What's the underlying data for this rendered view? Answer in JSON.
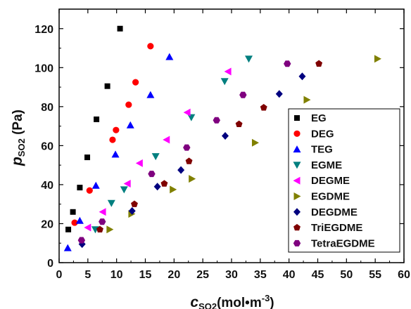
{
  "chart_data": {
    "type": "scatter",
    "x_axis": {
      "min": 0,
      "max": 60,
      "ticks": [
        0,
        5,
        10,
        15,
        20,
        25,
        30,
        35,
        40,
        45,
        50,
        55,
        60
      ]
    },
    "y_axis": {
      "min": 0,
      "max": 130,
      "ticks": [
        0,
        20,
        40,
        60,
        80,
        100,
        120
      ]
    },
    "legend_position": "right",
    "series": [
      {
        "name": "EG",
        "marker": "square",
        "color": "#000000",
        "points": [
          [
            1.6,
            17
          ],
          [
            2.4,
            26
          ],
          [
            3.6,
            38.5
          ],
          [
            4.9,
            54
          ],
          [
            6.5,
            73.5
          ],
          [
            8.4,
            90.5
          ],
          [
            10.6,
            120
          ]
        ]
      },
      {
        "name": "DEG",
        "marker": "circle",
        "color": "#ff0000",
        "points": [
          [
            2.7,
            20.5
          ],
          [
            5.3,
            37
          ],
          [
            9.3,
            63
          ],
          [
            9.9,
            68
          ],
          [
            12.1,
            81
          ],
          [
            13.3,
            92.5
          ],
          [
            15.9,
            111
          ]
        ]
      },
      {
        "name": "TEG",
        "marker": "triangle-up",
        "color": "#0000ff",
        "points": [
          [
            1.5,
            7.5
          ],
          [
            3.6,
            21.5
          ],
          [
            6.4,
            39.5
          ],
          [
            9.8,
            55.5
          ],
          [
            12.4,
            70.5
          ],
          [
            15.9,
            86
          ],
          [
            19.2,
            105.5
          ]
        ]
      },
      {
        "name": "EGME",
        "marker": "triangle-down",
        "color": "#007f7f",
        "points": [
          [
            6.3,
            17
          ],
          [
            9.1,
            30.5
          ],
          [
            11.3,
            37.5
          ],
          [
            16.8,
            54.5
          ],
          [
            23,
            74.5
          ],
          [
            28.8,
            93
          ],
          [
            33,
            104.5
          ]
        ]
      },
      {
        "name": "DEGME",
        "marker": "triangle-left",
        "color": "#ff00ff",
        "points": [
          [
            5,
            18
          ],
          [
            7.6,
            26
          ],
          [
            11.9,
            40.5
          ],
          [
            14,
            51
          ],
          [
            18.7,
            63
          ],
          [
            22.3,
            77
          ],
          [
            29.4,
            98
          ]
        ]
      },
      {
        "name": "EGDME",
        "marker": "triangle-right",
        "color": "#808000",
        "points": [
          [
            8.8,
            17
          ],
          [
            12.6,
            25
          ],
          [
            19.8,
            37.5
          ],
          [
            23.1,
            43
          ],
          [
            34.1,
            61.5
          ],
          [
            43.1,
            83.5
          ],
          [
            55.4,
            104.5
          ]
        ]
      },
      {
        "name": "DEGDME",
        "marker": "diamond",
        "color": "#00007f",
        "points": [
          [
            4,
            9.5
          ],
          [
            12.7,
            26.5
          ],
          [
            17.1,
            39
          ],
          [
            21.2,
            47.5
          ],
          [
            28.9,
            65
          ],
          [
            38.3,
            86.5
          ],
          [
            42.3,
            95.5
          ]
        ]
      },
      {
        "name": "TriEGDME",
        "marker": "pentagon",
        "color": "#7f0000",
        "points": [
          [
            7.1,
            17
          ],
          [
            13.1,
            30
          ],
          [
            18.3,
            40.5
          ],
          [
            22.6,
            52
          ],
          [
            31.3,
            71
          ],
          [
            35.6,
            79.5
          ],
          [
            45.2,
            102
          ]
        ]
      },
      {
        "name": "TetraEGDME",
        "marker": "hexagon",
        "color": "#7f007f",
        "points": [
          [
            3.9,
            11.5
          ],
          [
            7.5,
            21
          ],
          [
            16.1,
            45.5
          ],
          [
            22.2,
            59
          ],
          [
            27.4,
            73
          ],
          [
            32,
            86
          ],
          [
            39.7,
            102
          ]
        ]
      }
    ],
    "xlabel": {
      "main": "c",
      "sub": "SO2",
      "rest": "(mol•m",
      "sup": "-3",
      "end": ")"
    },
    "ylabel": {
      "main": "p",
      "sub": "SO2",
      "rest": " (Pa)"
    }
  }
}
